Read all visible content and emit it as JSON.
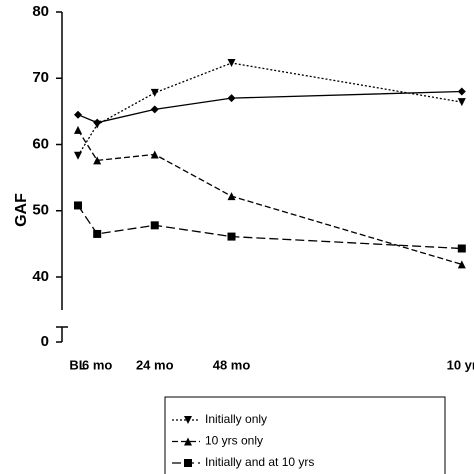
{
  "chart_data": {
    "type": "line",
    "y_label": "GAF",
    "x": [
      0,
      6,
      24,
      48,
      120
    ],
    "xlim": [
      -5,
      121
    ],
    "xticks": [
      {
        "value": 0,
        "label": "BL"
      },
      {
        "value": 6,
        "label": "6 mo"
      },
      {
        "value": 24,
        "label": "24 mo"
      },
      {
        "value": 48,
        "label": "48 mo"
      },
      {
        "value": 120,
        "label": "10 yr"
      }
    ],
    "ylim": [
      0,
      80
    ],
    "y_break": [
      0,
      40
    ],
    "yticks": [
      0,
      40,
      50,
      60,
      70,
      80
    ],
    "series": [
      {
        "color": "#000000",
        "dash": "solid",
        "marker": "diamond",
        "values": [
          64.5,
          63.3,
          65.3,
          67,
          68
        ]
      },
      {
        "name": "Initially only",
        "color": "#000000",
        "dash": "dotted",
        "marker": "triangle-down",
        "values": [
          58.3,
          63,
          67.8,
          72.3,
          66.4
        ]
      },
      {
        "name": "10 yrs only",
        "color": "#000000",
        "dash": "dashed",
        "marker": "triangle-up",
        "values": [
          62.2,
          57.6,
          58.5,
          52.2,
          41.9
        ]
      },
      {
        "name": "Initially and at 10 yrs",
        "color": "#000000",
        "dash": "longdash",
        "marker": "square",
        "values": [
          50.8,
          46.5,
          47.8,
          46.1,
          44.3
        ]
      }
    ]
  }
}
